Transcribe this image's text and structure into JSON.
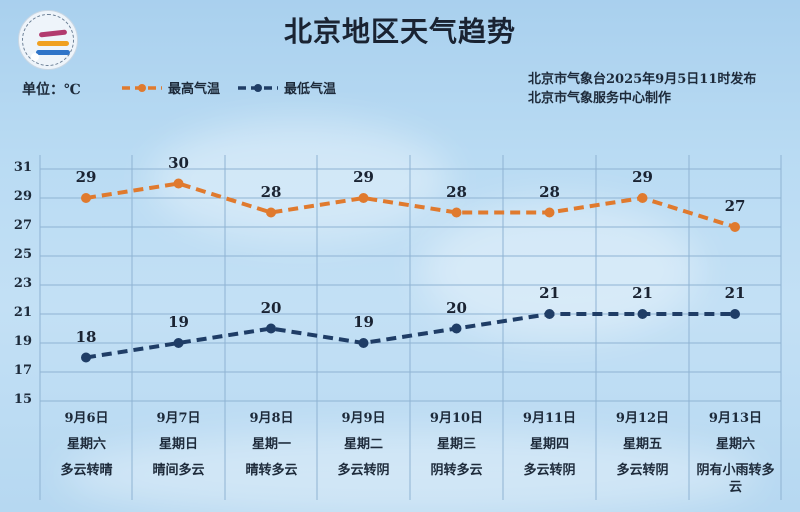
{
  "header": {
    "title": "北京地区天气趋势",
    "unit_label": "单位：℃",
    "publisher_line1": "北京市气象台2025年9月5日11时发布",
    "publisher_line2": "北京市气象服务中心制作",
    "logo_icon": "meteorological-service-logo"
  },
  "legend": {
    "high_label": "最高气温",
    "low_label": "最低气温"
  },
  "colors": {
    "high": "#e07a2e",
    "low": "#1f3d66",
    "grid": "#8fb3d3",
    "text": "#1a2332"
  },
  "axis": {
    "y_ticks": [
      "31",
      "29",
      "27",
      "25",
      "23",
      "21",
      "19",
      "17",
      "15"
    ]
  },
  "days": [
    {
      "date": "9月6日",
      "weekday": "星期六",
      "weather": "多云转晴",
      "high": "29",
      "low": "18"
    },
    {
      "date": "9月7日",
      "weekday": "星期日",
      "weather": "晴间多云",
      "high": "30",
      "low": "19"
    },
    {
      "date": "9月8日",
      "weekday": "星期一",
      "weather": "晴转多云",
      "high": "28",
      "low": "20"
    },
    {
      "date": "9月9日",
      "weekday": "星期二",
      "weather": "多云转阴",
      "high": "29",
      "low": "19"
    },
    {
      "date": "9月10日",
      "weekday": "星期三",
      "weather": "阴转多云",
      "high": "28",
      "low": "20"
    },
    {
      "date": "9月11日",
      "weekday": "星期四",
      "weather": "多云转阴",
      "high": "28",
      "low": "21"
    },
    {
      "date": "9月12日",
      "weekday": "星期五",
      "weather": "多云转阴",
      "high": "29",
      "low": "21"
    },
    {
      "date": "9月13日",
      "weekday": "星期六",
      "weather": "阴有小雨转多云",
      "high": "27",
      "low": "21"
    }
  ],
  "chart_data": {
    "type": "line",
    "title": "北京地区天气趋势",
    "xlabel": "",
    "ylabel": "单位：℃",
    "categories": [
      "9月6日",
      "9月7日",
      "9月8日",
      "9月9日",
      "9月10日",
      "9月11日",
      "9月12日",
      "9月13日"
    ],
    "series": [
      {
        "name": "最高气温",
        "color": "#e07a2e",
        "style": "dashed",
        "values": [
          29,
          30,
          28,
          29,
          28,
          28,
          29,
          27
        ]
      },
      {
        "name": "最低气温",
        "color": "#1f3d66",
        "style": "dashed",
        "values": [
          18,
          19,
          20,
          19,
          20,
          21,
          21,
          21
        ]
      }
    ],
    "ylim": [
      15,
      31
    ],
    "y_ticks": [
      15,
      17,
      19,
      21,
      23,
      25,
      27,
      29,
      31
    ],
    "grid": true,
    "legend_position": "top-left",
    "data_labels": true,
    "weekdays": [
      "星期六",
      "星期日",
      "星期一",
      "星期二",
      "星期三",
      "星期四",
      "星期五",
      "星期六"
    ],
    "weather": [
      "多云转晴",
      "晴间多云",
      "晴转多云",
      "多云转阴",
      "阴转多云",
      "多云转阴",
      "多云转阴",
      "阴有小雨转多云"
    ],
    "annotation": "北京市气象台2025年9月5日11时发布 / 北京市气象服务中心制作"
  }
}
